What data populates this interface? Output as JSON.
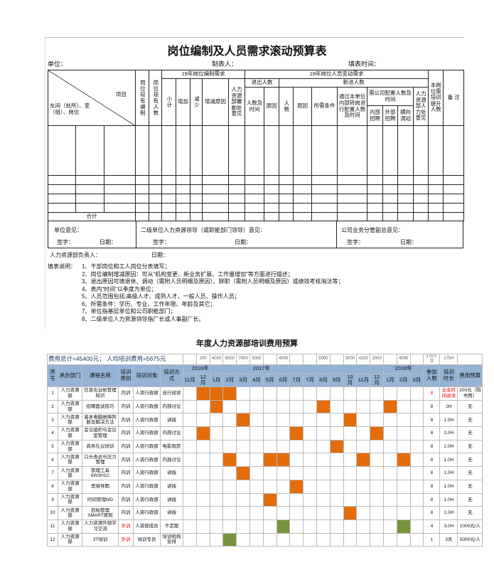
{
  "doc1": {
    "title": "岗位编制及人员需求滚动预算表",
    "unit_label": "单位：",
    "maker_label": "制表人：",
    "date_label": "填表时间：",
    "header": {
      "item": "项目",
      "row_label": "车间（处所）、室（组）、岗位",
      "current_quota": "岗位现有编制",
      "current_staff": "岗位现有人数",
      "quota_need": "19年岗位编制需求",
      "change_need": "19年岗位人员变动需求",
      "subtotal": "小计",
      "increase": "增加",
      "decrease": "减少",
      "reason": "增减原因",
      "hr_review": "人力资源部審副处意见",
      "exit": "退出人数",
      "new": "新进人数",
      "exit_count": "人数及时间",
      "exit_reason": "原因",
      "new_count": "人数",
      "new_reason": "原因",
      "requirement": "所需条件",
      "internal_transfer": "通过本单位内部转岗进行配置人数及时间",
      "company_alloc": "需公司配置人数及时间",
      "internal_recruit": "内部招聘",
      "external_recruit": "外部招聘",
      "lateral": "横向调动",
      "hr_opinion": "人力资源部人力处意见",
      "training": "本岗位需培训提升人数",
      "remark": "备 注"
    },
    "total_label": "合计",
    "opinions": {
      "unit": "单位意见：",
      "secondary": "二级单位人力资源领导（或职能部门领导）意见：",
      "vp": "公司业务分管副总意见：",
      "sign": "签字：",
      "date": "日期："
    },
    "hr_head": "人力资源部负责人：",
    "hr_date": "日期：",
    "notes_label": "填表说明：",
    "notes": [
      "1、干部岗位和工人岗位分表填写；",
      "2、岗位编制增减原因：可从“机构变更、新业务扩展、工作量增加”等方面进行描述；",
      "3、退出原因可填退休、调动（需附人员明细及原因）、辞职（需附人员明细及原因）或绩效考核淘汰等；",
      "4、表内“时间”以季度为单位；",
      "5、人员范围包括:高级人才、成熟人才、一般人员、操作人员；",
      "6、所需条件：学历、专业、工作年限、年龄及其它；",
      "7、单位指基层单位和公司职能部门；",
      "8、二级单位人力资源领导指厂长或人事副厂长。"
    ]
  },
  "doc2": {
    "title": "年度人力资源部培训费用预算",
    "summary": "费用总计=45400元；    人均培训费用=5675元",
    "monthly_costs": [
      "",
      "200",
      "4000",
      "9000",
      "7000",
      "3000",
      "",
      "4000",
      "",
      "",
      "5000",
      "",
      "3000",
      "4200",
      "2000",
      "",
      "4000",
      ""
    ],
    "total_people": "170人次",
    "total_hours": "175H",
    "headers": {
      "no": "序号",
      "dept": "承办部门",
      "course": "课程名称",
      "type": "培训类别",
      "target": "培训对象",
      "method": "培训方式",
      "people": "参加人数",
      "hours": "培训时长",
      "budget": "费用预算"
    },
    "years": [
      "2016年",
      "2017年",
      "2018年"
    ],
    "months": [
      "11月",
      "12月",
      "1月",
      "2月",
      "3月",
      "4月",
      "5月",
      "6月",
      "7月",
      "7月",
      "8月",
      "9月",
      "10月",
      "11月",
      "12月",
      "1月",
      "2月",
      "3月"
    ],
    "colors": {
      "header": "#95b3d7",
      "internal": "#e46c0a",
      "external": "#77933c"
    },
    "rows": [
      {
        "no": "1",
        "dept": "人力资源部",
        "course": "信息化台帐管理知识",
        "type": "内训",
        "target": "人资行政部",
        "method": "自行阅读",
        "months": [
          1,
          2,
          3
        ],
        "kind": "on",
        "people": "8",
        "hours": "业余时间阅读",
        "budget": "200元（购书用）"
      },
      {
        "no": "2",
        "dept": "人力资源部",
        "course": "招聘面试技巧",
        "type": "内训",
        "target": "人资行政部",
        "method": "内部讨论",
        "months": [
          2,
          10,
          15
        ],
        "kind": "on",
        "people": "8",
        "hours": "2H",
        "budget": "无"
      },
      {
        "no": "3",
        "dept": "人力资源部",
        "course": "基本电脑故障判断及解决方法",
        "type": "内训",
        "target": "人资行政部",
        "method": "讲授",
        "months": [
          4,
          12
        ],
        "kind": "on",
        "people": "8",
        "hours": "1.5H",
        "budget": "无"
      },
      {
        "no": "4",
        "dept": "人力资源部",
        "course": "会议组织与会议室管理",
        "type": "内训",
        "target": "人资行政部",
        "method": "内部讨论",
        "months": [
          1,
          8,
          14
        ],
        "kind": "on",
        "people": "8",
        "hours": "2.0H",
        "budget": "无"
      },
      {
        "no": "5",
        "dept": "人力资源部",
        "course": "商务礼仪培训",
        "type": "内训",
        "target": "人资行政部",
        "method": "电影观赏",
        "months": [
          11
        ],
        "kind": "on",
        "people": "8",
        "hours": "2.0H",
        "budget": "无"
      },
      {
        "no": "6",
        "dept": "人力资源部",
        "course": "口头表达与压力管理",
        "type": "内训",
        "target": "人资行政部",
        "method": "内部讨论",
        "months": [
          3,
          6,
          7,
          13,
          16
        ],
        "kind": "on",
        "people": "8",
        "hours": "1.0H",
        "budget": "无"
      },
      {
        "no": "7",
        "dept": "人力资源部",
        "course": "管理工具6W3H1C",
        "type": "内训",
        "target": "人资行政部",
        "method": "讲授",
        "months": [
          4
        ],
        "kind": "on",
        "people": "8",
        "hours": "1.0H",
        "budget": "无"
      },
      {
        "no": "8",
        "dept": "人力资源部",
        "course": "思维导图",
        "type": "内训",
        "target": "人资行政部",
        "method": "讲授",
        "months": [
          8
        ],
        "kind": "on",
        "people": "8",
        "hours": "1.0H",
        "budget": "无"
      },
      {
        "no": "9",
        "dept": "人力资源部",
        "course": "时间管理MD",
        "type": "内训",
        "target": "人资行政部",
        "method": "讲授",
        "months": [
          6
        ],
        "kind": "on",
        "people": "8",
        "hours": "1.0H",
        "budget": "无"
      },
      {
        "no": "10",
        "dept": "人力资源部",
        "course": "目标管理SMART原则",
        "type": "内训",
        "target": "人资行政部",
        "method": "讲授",
        "months": [
          12
        ],
        "kind": "on",
        "people": "8",
        "hours": "1.0H",
        "budget": "无"
      },
      {
        "no": "11",
        "dept": "人力资源部",
        "course": "人力资源外部学习交流",
        "type": "外训",
        "target": "人资部成员",
        "method": "不定期",
        "months": [
          7,
          16
        ],
        "kind": "gr",
        "people": "4",
        "hours": "3.0H",
        "budget": "1000元/人"
      },
      {
        "no": "12",
        "dept": "人力资源部",
        "course": "3T培训",
        "type": "外训",
        "target": "培训专员",
        "method": "培训机构安排",
        "months": [
          3
        ],
        "kind": "gr",
        "people": "1",
        "hours": "3天",
        "budget": "5000元/人"
      }
    ]
  }
}
